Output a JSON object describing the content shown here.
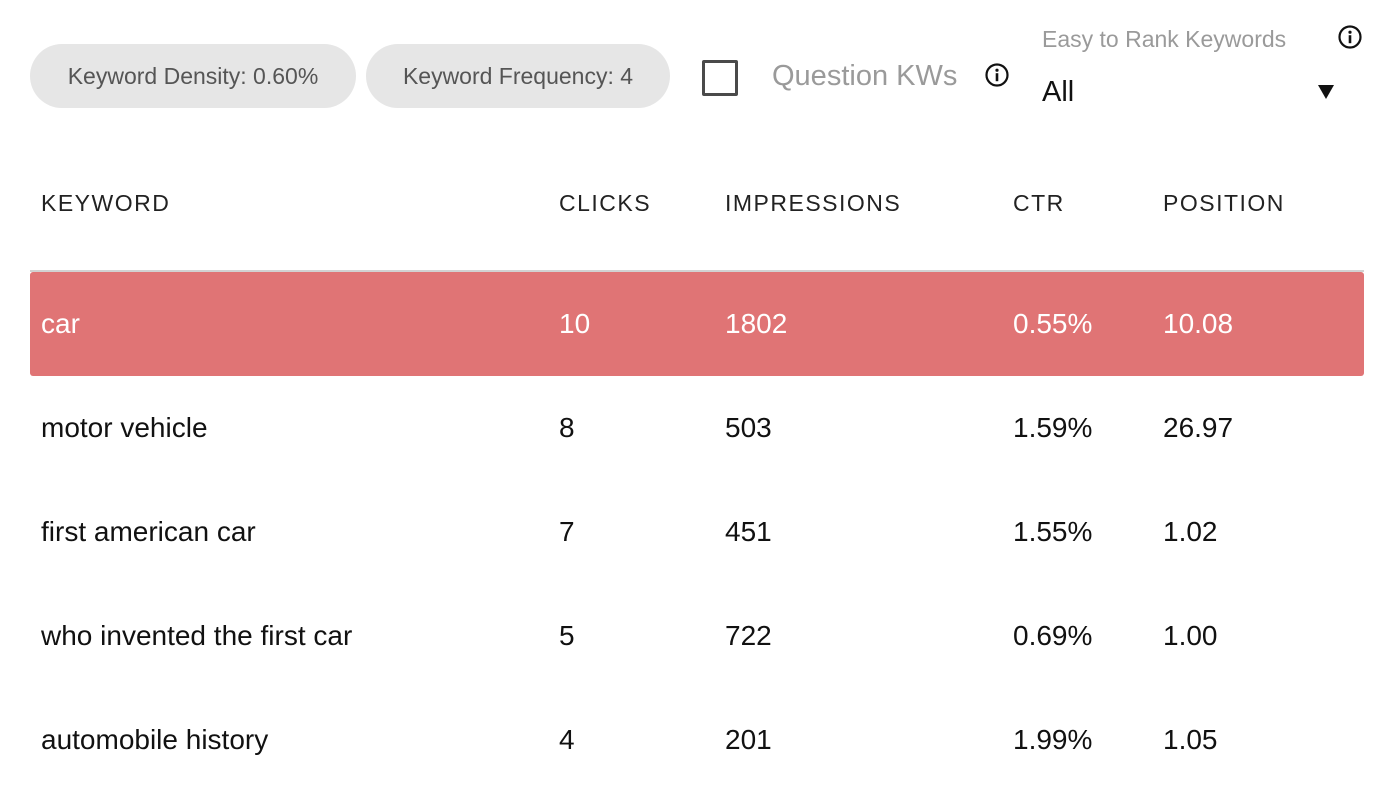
{
  "toolbar": {
    "density_label": "Keyword Density: 0.60%",
    "frequency_label": "Keyword Frequency: 4",
    "question_label": "Question KWs",
    "question_checked": false,
    "rank_label": "Easy to Rank Keywords",
    "rank_selected": "All"
  },
  "icons": {
    "info": "info-icon",
    "dropdown": "triangle-down-icon"
  },
  "colors": {
    "highlight_row": "#e07475",
    "pill_bg": "#e6e6e6",
    "muted_text": "#9a9a9a"
  },
  "table": {
    "headers": [
      "KEYWORD",
      "CLICKS",
      "IMPRESSIONS",
      "CTR",
      "POSITION"
    ],
    "rows": [
      {
        "keyword": "car",
        "clicks": "10",
        "impressions": "1802",
        "ctr": "0.55%",
        "position": "10.08",
        "highlighted": true
      },
      {
        "keyword": "motor vehicle",
        "clicks": "8",
        "impressions": "503",
        "ctr": "1.59%",
        "position": "26.97",
        "highlighted": false
      },
      {
        "keyword": "first american car",
        "clicks": "7",
        "impressions": "451",
        "ctr": "1.55%",
        "position": "1.02",
        "highlighted": false
      },
      {
        "keyword": "who invented the first car",
        "clicks": "5",
        "impressions": "722",
        "ctr": "0.69%",
        "position": "1.00",
        "highlighted": false
      },
      {
        "keyword": "automobile history",
        "clicks": "4",
        "impressions": "201",
        "ctr": "1.99%",
        "position": "1.05",
        "highlighted": false
      }
    ]
  }
}
